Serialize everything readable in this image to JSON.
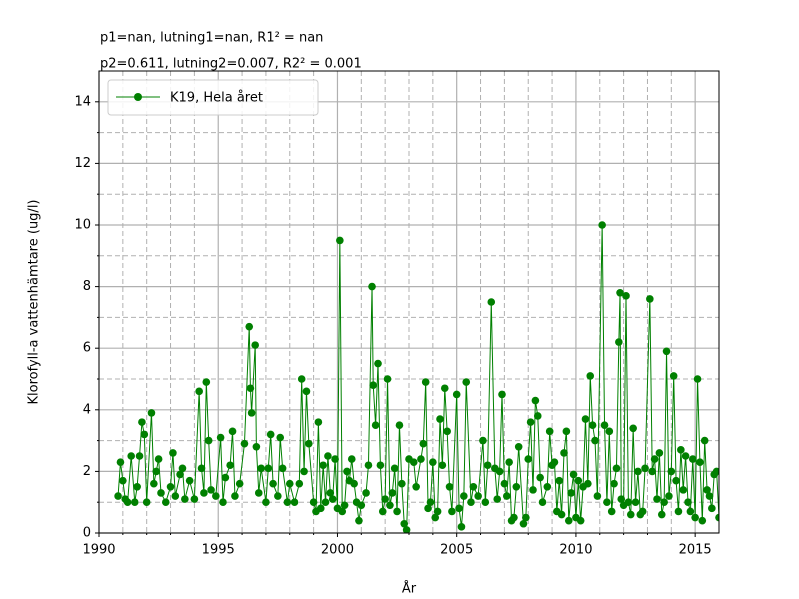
{
  "chart_data": {
    "type": "line",
    "title_lines": [
      "p1=nan, lutning1=nan, R1² = nan",
      "p2=0.611, lutning2=0.007, R2² = 0.001"
    ],
    "xlabel": "År",
    "ylabel": "Klorofyll-a vattenhämtare (ug/l)",
    "xlim": [
      1990,
      2016
    ],
    "ylim": [
      0,
      15
    ],
    "xticks": [
      1990,
      1995,
      2000,
      2005,
      2010,
      2015
    ],
    "xminorticks": [
      1991,
      1992,
      1993,
      1994,
      1996,
      1997,
      1998,
      1999,
      2001,
      2002,
      2003,
      2004,
      2006,
      2007,
      2008,
      2009,
      2011,
      2012,
      2013,
      2014
    ],
    "yticks": [
      0,
      2,
      4,
      6,
      8,
      10,
      12,
      14
    ],
    "yminorticks": [
      1,
      3,
      5,
      7,
      9,
      11,
      13
    ],
    "grid": true,
    "legend": "upper left",
    "series": [
      {
        "name": "K19, Hela året",
        "color": "#008000",
        "x": [
          1990.8,
          1990.9,
          1991.0,
          1991.1,
          1991.2,
          1991.35,
          1991.5,
          1991.6,
          1991.7,
          1991.8,
          1991.9,
          1992.0,
          1992.2,
          1992.3,
          1992.4,
          1992.5,
          1992.6,
          1992.8,
          1993.0,
          1993.1,
          1993.2,
          1993.4,
          1993.5,
          1993.6,
          1993.8,
          1994.0,
          1994.2,
          1994.3,
          1994.4,
          1994.5,
          1994.6,
          1994.7,
          1994.9,
          1995.1,
          1995.2,
          1995.3,
          1995.5,
          1995.6,
          1995.7,
          1995.9,
          1996.1,
          1996.3,
          1996.35,
          1996.4,
          1996.55,
          1996.6,
          1996.7,
          1996.8,
          1997.0,
          1997.1,
          1997.2,
          1997.3,
          1997.5,
          1997.6,
          1997.7,
          1997.9,
          1998.0,
          1998.2,
          1998.4,
          1998.5,
          1998.6,
          1998.7,
          1998.8,
          1999.0,
          1999.1,
          1999.2,
          1999.3,
          1999.4,
          1999.5,
          1999.6,
          1999.7,
          1999.8,
          1999.9,
          2000.0,
          2000.1,
          2000.2,
          2000.3,
          2000.4,
          2000.5,
          2000.6,
          2000.7,
          2000.8,
          2000.9,
          2001.0,
          2001.2,
          2001.3,
          2001.45,
          2001.5,
          2001.6,
          2001.7,
          2001.8,
          2001.9,
          2002.0,
          2002.1,
          2002.2,
          2002.3,
          2002.4,
          2002.5,
          2002.6,
          2002.7,
          2002.8,
          2002.9,
          2003.0,
          2003.2,
          2003.3,
          2003.5,
          2003.6,
          2003.7,
          2003.8,
          2003.9,
          2004.0,
          2004.1,
          2004.2,
          2004.3,
          2004.4,
          2004.5,
          2004.6,
          2004.7,
          2004.8,
          2005.0,
          2005.1,
          2005.2,
          2005.3,
          2005.4,
          2005.6,
          2005.7,
          2005.9,
          2006.1,
          2006.2,
          2006.3,
          2006.45,
          2006.6,
          2006.7,
          2006.8,
          2006.9,
          2007.0,
          2007.1,
          2007.2,
          2007.3,
          2007.4,
          2007.5,
          2007.6,
          2007.8,
          2007.9,
          2008.0,
          2008.1,
          2008.2,
          2008.3,
          2008.4,
          2008.5,
          2008.6,
          2008.8,
          2008.9,
          2009.0,
          2009.1,
          2009.2,
          2009.3,
          2009.4,
          2009.5,
          2009.6,
          2009.7,
          2009.8,
          2009.9,
          2010.0,
          2010.1,
          2010.2,
          2010.3,
          2010.4,
          2010.5,
          2010.6,
          2010.7,
          2010.8,
          2010.9,
          2011.1,
          2011.2,
          2011.3,
          2011.4,
          2011.5,
          2011.6,
          2011.7,
          2011.8,
          2011.85,
          2011.9,
          2012.0,
          2012.1,
          2012.2,
          2012.3,
          2012.4,
          2012.5,
          2012.6,
          2012.7,
          2012.8,
          2012.9,
          2013.1,
          2013.2,
          2013.3,
          2013.4,
          2013.5,
          2013.6,
          2013.7,
          2013.8,
          2013.9,
          2014.0,
          2014.1,
          2014.2,
          2014.3,
          2014.4,
          2014.5,
          2014.6,
          2014.7,
          2014.8,
          2014.9,
          2015.0,
          2015.1,
          2015.2,
          2015.3,
          2015.4,
          2015.5,
          2015.6,
          2015.7,
          2015.8,
          2015.9,
          2016.0
        ],
        "values": [
          1.2,
          2.3,
          1.7,
          1.1,
          1.0,
          2.5,
          1.0,
          1.5,
          2.5,
          3.6,
          3.2,
          1.0,
          3.9,
          1.6,
          2.0,
          2.4,
          1.3,
          1.0,
          1.5,
          2.6,
          1.2,
          1.9,
          2.1,
          1.1,
          1.7,
          1.1,
          4.6,
          2.1,
          1.3,
          4.9,
          3.0,
          1.4,
          1.2,
          3.1,
          1.0,
          1.8,
          2.2,
          3.3,
          1.2,
          1.6,
          2.9,
          6.7,
          4.7,
          3.9,
          6.1,
          2.8,
          1.3,
          2.1,
          1.0,
          2.1,
          3.2,
          1.6,
          1.2,
          3.1,
          2.1,
          1.0,
          1.6,
          1.0,
          1.6,
          5.0,
          2.0,
          4.6,
          2.9,
          1.0,
          0.7,
          3.6,
          0.8,
          2.2,
          1.0,
          2.5,
          1.3,
          1.1,
          2.4,
          0.8,
          9.5,
          0.7,
          0.9,
          2.0,
          1.7,
          2.4,
          1.6,
          1.0,
          0.4,
          0.9,
          1.3,
          2.2,
          8.0,
          4.8,
          3.5,
          5.5,
          2.2,
          0.7,
          1.1,
          5.0,
          0.9,
          1.3,
          2.1,
          0.7,
          3.5,
          1.6,
          0.3,
          0.1,
          2.4,
          2.3,
          1.5,
          2.4,
          2.9,
          4.9,
          0.8,
          1.0,
          2.3,
          0.5,
          0.7,
          3.7,
          2.2,
          4.7,
          3.3,
          1.5,
          0.7,
          4.5,
          0.8,
          0.2,
          1.2,
          4.9,
          1.0,
          1.5,
          1.2,
          3.0,
          1.0,
          2.2,
          7.5,
          2.1,
          1.1,
          2.0,
          4.5,
          1.6,
          1.2,
          2.3,
          0.4,
          0.5,
          1.5,
          2.8,
          0.3,
          0.5,
          2.4,
          3.6,
          1.4,
          4.3,
          3.8,
          1.8,
          1.0,
          1.5,
          3.3,
          2.2,
          2.3,
          0.7,
          1.7,
          0.6,
          2.6,
          3.3,
          0.4,
          1.3,
          1.9,
          0.5,
          1.7,
          0.4,
          1.5,
          3.7,
          1.6,
          5.1,
          3.5,
          3.0,
          1.2,
          10.0,
          3.5,
          1.0,
          3.3,
          0.7,
          1.6,
          2.1,
          6.2,
          7.8,
          1.1,
          0.9,
          7.7,
          1.0,
          0.6,
          3.4,
          1.0,
          2.0,
          0.6,
          0.7,
          2.1,
          7.6,
          2.0,
          2.4,
          1.1,
          2.6,
          0.6,
          1.0,
          5.9,
          1.2,
          2.0,
          5.1,
          1.7,
          0.7,
          2.7,
          1.4,
          2.5,
          1.0,
          0.7,
          2.4,
          0.5,
          5.0,
          2.3,
          0.4,
          3.0,
          1.4,
          1.2,
          0.8,
          1.9,
          2.0,
          0.5
        ]
      }
    ]
  }
}
